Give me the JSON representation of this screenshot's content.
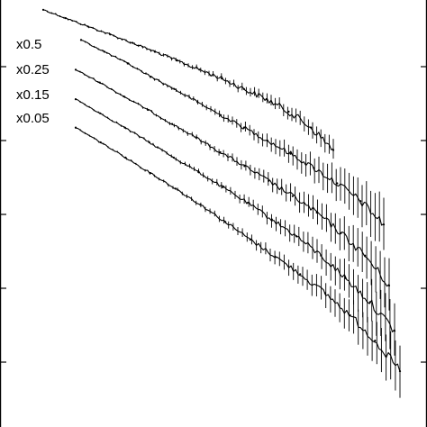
{
  "chart_data": {
    "type": "line",
    "title": "",
    "xlabel": "",
    "ylabel": "",
    "yscale": "log",
    "grid": false,
    "legend": "none",
    "series_color": "#000000",
    "scale_factor_labels": [
      "x0.5",
      "x0.25",
      "x0.15",
      "x0.05"
    ],
    "series": [
      {
        "name": "",
        "values": [
          1.0,
          0.86,
          0.74,
          0.64,
          0.55,
          0.47,
          0.4,
          0.34,
          0.29,
          0.24,
          0.2,
          0.16,
          0.12,
          0.08
        ]
      },
      {
        "name": "x0.5",
        "values": [
          0.58,
          0.47,
          0.38,
          0.3,
          0.24,
          0.19,
          0.15,
          0.12,
          0.095,
          0.075,
          0.058,
          0.044,
          0.032,
          0.021
        ]
      },
      {
        "name": "x0.25",
        "values": [
          0.34,
          0.27,
          0.21,
          0.165,
          0.128,
          0.1,
          0.077,
          0.06,
          0.046,
          0.035,
          0.026,
          0.018,
          0.012,
          0.007
        ]
      },
      {
        "name": "x0.15",
        "values": [
          0.2,
          0.155,
          0.12,
          0.092,
          0.07,
          0.054,
          0.041,
          0.031,
          0.023,
          0.017,
          0.012,
          0.008,
          0.0052,
          0.0031
        ]
      },
      {
        "name": "x0.05",
        "values": [
          0.12,
          0.092,
          0.07,
          0.053,
          0.04,
          0.03,
          0.022,
          0.016,
          0.0118,
          0.0086,
          0.0061,
          0.0041,
          0.0026,
          0.0015
        ]
      }
    ]
  }
}
